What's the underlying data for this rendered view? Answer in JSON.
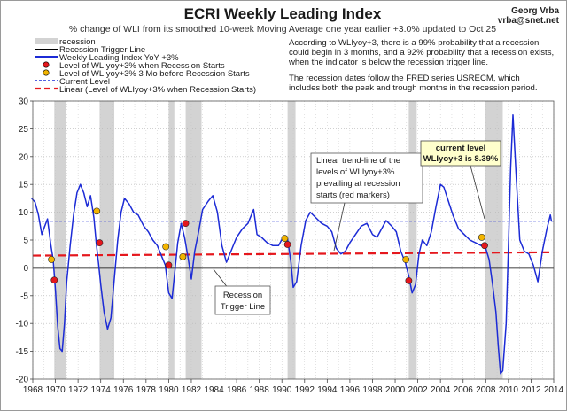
{
  "chart_data": {
    "type": "line",
    "title": "ECRI Weekly Leading Index",
    "subtitle": "% change of WLI from its smoothed 10-week Moving Average one year earlier +3.0% updated to Oct 25",
    "author": "Georg Vrba",
    "email": "vrba@snet.net",
    "xlim": [
      1968,
      2014
    ],
    "ylim": [
      -20,
      30
    ],
    "x_ticks": [
      "1968",
      "1970",
      "1972",
      "1974",
      "1976",
      "1978",
      "1980",
      "1982",
      "1984",
      "1986",
      "1988",
      "1990",
      "1992",
      "1994",
      "1996",
      "1998",
      "2000",
      "2002",
      "2004",
      "2006",
      "2008",
      "2010",
      "2012",
      "2014"
    ],
    "y_ticks": [
      "30",
      "25",
      "20",
      "15",
      "10",
      "5",
      "0",
      "-5",
      "-10",
      "-15",
      "-20"
    ],
    "recessions": [
      [
        1969.9,
        1970.9
      ],
      [
        1973.9,
        1975.2
      ],
      [
        1980.0,
        1980.5
      ],
      [
        1981.5,
        1982.9
      ],
      [
        1990.5,
        1991.2
      ],
      [
        2001.2,
        2001.9
      ],
      [
        2007.9,
        2009.5
      ]
    ],
    "trigger_level": 0,
    "current_level": 8.39,
    "trend_line": {
      "x": [
        1968,
        2014
      ],
      "y": [
        2.2,
        2.8
      ]
    },
    "series": [
      {
        "name": "Weekly Leading Index YoY +3%",
        "color": "#1c2bd6",
        "x": [
          1967.9,
          1968.2,
          1968.5,
          1968.8,
          1969.0,
          1969.3,
          1969.6,
          1969.8,
          1970.0,
          1970.2,
          1970.4,
          1970.6,
          1970.8,
          1971.0,
          1971.3,
          1971.6,
          1971.9,
          1972.2,
          1972.5,
          1972.8,
          1973.1,
          1973.4,
          1973.6,
          1973.8,
          1974.0,
          1974.3,
          1974.6,
          1974.9,
          1975.2,
          1975.5,
          1975.8,
          1976.1,
          1976.5,
          1976.9,
          1977.3,
          1977.8,
          1978.2,
          1978.6,
          1979.0,
          1979.4,
          1979.7,
          1980.0,
          1980.3,
          1980.5,
          1980.8,
          1981.1,
          1981.4,
          1981.7,
          1982.0,
          1982.3,
          1982.6,
          1983.0,
          1983.5,
          1983.9,
          1984.3,
          1984.7,
          1985.1,
          1985.5,
          1986.0,
          1986.5,
          1987.0,
          1987.5,
          1987.8,
          1988.2,
          1988.7,
          1989.2,
          1989.7,
          1990.1,
          1990.5,
          1990.8,
          1991.0,
          1991.3,
          1991.7,
          1992.1,
          1992.5,
          1993.0,
          1993.5,
          1994.0,
          1994.4,
          1994.8,
          1995.2,
          1995.6,
          1996.0,
          1996.5,
          1997.0,
          1997.5,
          1998.0,
          1998.4,
          1998.8,
          1999.2,
          1999.7,
          2000.1,
          2000.5,
          2000.9,
          2001.2,
          2001.5,
          2001.8,
          2002.1,
          2002.4,
          2002.8,
          2003.2,
          2003.6,
          2004.0,
          2004.3,
          2004.7,
          2005.1,
          2005.6,
          2006.1,
          2006.6,
          2007.1,
          2007.6,
          2008.0,
          2008.3,
          2008.6,
          2008.9,
          2009.1,
          2009.3,
          2009.5,
          2009.8,
          2010.0,
          2010.2,
          2010.4,
          2010.7,
          2011.0,
          2011.4,
          2011.8,
          2012.2,
          2012.6,
          2013.0,
          2013.4,
          2013.7,
          2013.8
        ],
        "y": [
          12.5,
          11.8,
          9.5,
          6.0,
          7.2,
          8.8,
          4.0,
          1.5,
          -4.0,
          -10.5,
          -14.5,
          -15.0,
          -10.0,
          -2.5,
          4.0,
          9.5,
          13.5,
          15.0,
          13.5,
          11.0,
          13.0,
          9.0,
          4.5,
          1.0,
          -3.0,
          -8.0,
          -11.0,
          -9.0,
          -2.0,
          5.0,
          10.0,
          12.5,
          11.5,
          10.0,
          9.5,
          7.5,
          6.5,
          5.0,
          4.0,
          2.0,
          0.5,
          -4.5,
          -5.5,
          -1.5,
          4.5,
          8.0,
          5.5,
          2.0,
          -2.0,
          3.0,
          6.0,
          10.5,
          12.0,
          13.0,
          10.0,
          4.0,
          1.0,
          3.0,
          5.5,
          7.0,
          8.0,
          10.5,
          6.0,
          5.5,
          4.5,
          4.0,
          4.0,
          5.5,
          5.2,
          1.0,
          -3.5,
          -2.5,
          4.0,
          8.5,
          10.0,
          9.0,
          8.0,
          7.5,
          6.5,
          3.5,
          2.5,
          3.0,
          4.5,
          6.0,
          7.5,
          8.0,
          6.0,
          5.5,
          7.0,
          8.5,
          7.5,
          6.5,
          3.0,
          1.0,
          -1.5,
          -4.5,
          -3.0,
          2.5,
          5.0,
          4.0,
          6.5,
          11.0,
          15.0,
          14.5,
          12.0,
          9.5,
          7.0,
          6.0,
          5.0,
          4.5,
          4.0,
          3.5,
          1.5,
          -3.0,
          -8.0,
          -14.0,
          -19.0,
          -18.5,
          -10.0,
          4.0,
          18.0,
          27.5,
          16.0,
          5.0,
          3.0,
          2.5,
          0.5,
          -2.5,
          3.0,
          7.0,
          9.5,
          8.4
        ]
      },
      {
        "name": "Level of WLIyoy+3% when Recession Starts",
        "color": "#e5171d",
        "x": [
          1969.9,
          1973.9,
          1980.0,
          1981.5,
          1990.5,
          2001.2,
          2007.9
        ],
        "y": [
          -2.2,
          4.5,
          0.5,
          8.0,
          4.2,
          -2.3,
          4.0
        ]
      },
      {
        "name": "Level of WLIyoy+3% 3 Mo before Recession Starts",
        "color": "#f2b400",
        "x": [
          1969.65,
          1973.65,
          1979.75,
          1981.25,
          1990.25,
          2000.95,
          2007.65
        ],
        "y": [
          1.5,
          10.2,
          3.8,
          2.0,
          5.3,
          1.5,
          5.5
        ]
      }
    ],
    "legend": {
      "placement": "top-left",
      "items": [
        "recession",
        "Recession Trigger Line",
        "Weekly Leading Index YoY +3%",
        "Level of WLIyoy+3% when Recession Starts",
        "Level of WLIyoy+3% 3 Mo before Recession Starts",
        "Current Level",
        "Linear (Level of WLIyoy+3% when Recession Starts)"
      ]
    },
    "notes": [
      "According to WLIyoy+3, there is a 99% probability that a recession",
      "could begin in 3 months, and a 92% probability that a recession exists,",
      "when the indicator is below the recession trigger line.",
      "",
      "The recession dates follow the FRED series USRECM, which",
      "includes both the peak and trough months in the recession period."
    ],
    "annotations": {
      "trend": [
        "Linear trend-line  of the",
        "levels of WLIyoy+3%",
        "prevailing at recession",
        "starts (red markers)"
      ],
      "trigger": [
        "Recession",
        "Trigger Line"
      ],
      "current": [
        "current level",
        "WLIyoy+3 is 8.39%"
      ]
    },
    "grid": true
  },
  "colors": {
    "recession": "#d3d3d3",
    "trigger": "#000000",
    "current": "#1c2bd6",
    "trend": "#e5171d",
    "current_box": "#ffffcc"
  }
}
